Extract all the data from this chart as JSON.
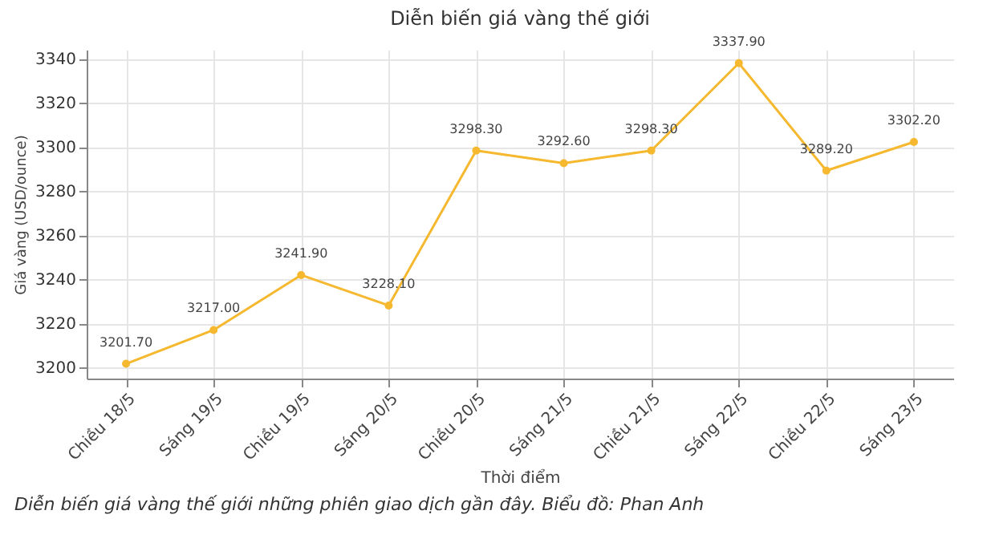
{
  "chart_data": {
    "type": "line",
    "title": "Diễn biến giá vàng thế giới",
    "xlabel": "Thời điểm",
    "ylabel": "Giá vàng (USD/ounce)",
    "categories": [
      "Chiều 18/5",
      "Sáng 19/5",
      "Chiều 19/5",
      "Sáng 20/5",
      "Chiều 20/5",
      "Sáng 21/5",
      "Chiều 21/5",
      "Sáng 22/5",
      "Chiều 22/5",
      "Sáng 23/5"
    ],
    "series": [
      {
        "color": "#f5b82e",
        "values": [
          3201.7,
          3217.0,
          3241.9,
          3228.1,
          3298.3,
          3292.6,
          3298.3,
          3337.9,
          3289.2,
          3302.2
        ],
        "value_labels": [
          "3201.70",
          "3217.00",
          "3241.90",
          "3228.10",
          "3298.30",
          "3292.60",
          "3298.30",
          "3337.90",
          "3289.20",
          "3302.20"
        ]
      }
    ],
    "ylim": [
      3195,
      3344
    ],
    "yticks": [
      3200,
      3220,
      3240,
      3260,
      3280,
      3300,
      3320,
      3340
    ],
    "grid": true,
    "marker": "circle",
    "line_style": "solid",
    "annotations": [
      "Diễn biến giá vàng thế giới những phiên giao dịch gần đây. Biểu đồ: Phan Anh"
    ]
  }
}
